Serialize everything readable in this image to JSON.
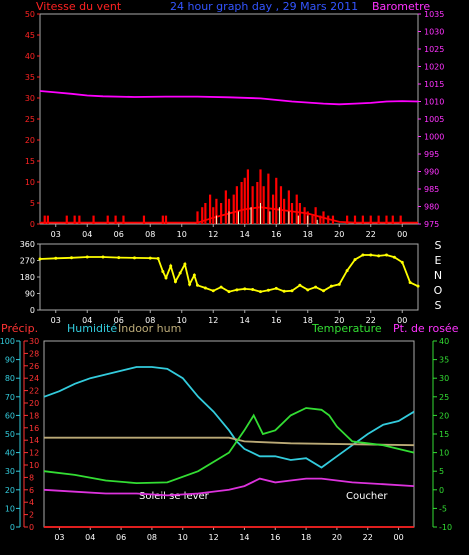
{
  "chart_data": [
    {
      "id": "wind",
      "type": "line",
      "title": "24 hour graph day , 29 Mars 2011",
      "left_axis_label": "Vitesse du vent",
      "right_axis_label": "Barometre",
      "xlabels": [
        "03",
        "04",
        "06",
        "08",
        "10",
        "12",
        "14",
        "16",
        "18",
        "20",
        "22",
        "00"
      ],
      "ylim": [
        0,
        50
      ],
      "yticks": [
        0,
        5,
        10,
        15,
        20,
        25,
        30,
        35,
        40,
        45,
        50
      ],
      "y2lim": [
        975,
        1035
      ],
      "y2ticks": [
        975,
        980,
        985,
        990,
        995,
        1000,
        1005,
        1010,
        1015,
        1020,
        1025,
        1030,
        1035
      ],
      "series": [
        {
          "color": "#ff00ff",
          "axis": "right",
          "x": [
            0,
            1,
            2,
            3,
            4,
            6,
            8,
            10,
            12,
            14,
            16,
            18,
            19,
            20,
            21,
            22,
            23,
            24
          ],
          "values": [
            1013,
            1012.6,
            1012.2,
            1011.7,
            1011.5,
            1011.3,
            1011.4,
            1011.4,
            1011.2,
            1010.9,
            1010,
            1009.4,
            1009.2,
            1009.4,
            1009.6,
            1010,
            1010.1,
            1010
          ]
        },
        {
          "color": "#ff0000",
          "axis": "left",
          "kind": "gust_bars",
          "x": [
            0.3,
            0.5,
            1.7,
            2.2,
            2.5,
            3.4,
            4.3,
            4.8,
            5.3,
            6.6,
            7.8,
            8.0,
            10.0,
            10.3,
            10.5,
            10.8,
            11.0,
            11.2,
            11.5,
            11.8,
            12.0,
            12.3,
            12.5,
            12.8,
            13.0,
            13.2,
            13.5,
            13.8,
            14.0,
            14.2,
            14.5,
            14.8,
            15.0,
            15.3,
            15.5,
            15.8,
            16.0,
            16.3,
            16.5,
            16.8,
            17.0,
            17.3,
            17.5,
            17.8,
            18.0,
            18.3,
            18.6,
            19.5,
            20.0,
            20.5,
            21.0,
            21.5,
            22.0,
            22.4,
            22.9
          ],
          "values": [
            2,
            2,
            2,
            2,
            2,
            2,
            2,
            2,
            2,
            2,
            2,
            2,
            3,
            4,
            5,
            7,
            4,
            6,
            5,
            8,
            6,
            7,
            9,
            10,
            11,
            13,
            9,
            10,
            13,
            9,
            12,
            7,
            11,
            9,
            6,
            8,
            5,
            7,
            5,
            4,
            3,
            2,
            4,
            2,
            3,
            2,
            2,
            2,
            2,
            2,
            2,
            2,
            2,
            2,
            2
          ]
        },
        {
          "color": "#ff0000",
          "axis": "left",
          "kind": "mean_line",
          "x": [
            0,
            10,
            11,
            12,
            13,
            14,
            15,
            16,
            17,
            18,
            19,
            20,
            24
          ],
          "values": [
            0.3,
            0.3,
            1.5,
            2.5,
            3.5,
            4,
            3.5,
            3,
            2.5,
            1.5,
            0.5,
            0.3,
            0.3
          ]
        },
        {
          "color": "#ffffcc",
          "axis": "left",
          "kind": "ticks",
          "x": [
            11.2,
            12.0,
            12.6,
            13.4,
            14.0,
            14.6,
            15.2,
            15.8,
            16.4,
            17.0,
            17.6
          ],
          "values": [
            2,
            3,
            3,
            4,
            5,
            3,
            4,
            3,
            2,
            2,
            1
          ]
        }
      ]
    },
    {
      "id": "direction",
      "type": "scatter",
      "right_label": [
        "S",
        "E",
        "N",
        "O",
        "S"
      ],
      "xlabels": [
        "03",
        "04",
        "06",
        "08",
        "10",
        "12",
        "14",
        "16",
        "18",
        "20",
        "22",
        "00"
      ],
      "ylim": [
        0,
        360
      ],
      "yticks": [
        0,
        90,
        180,
        270,
        360
      ],
      "series": [
        {
          "color": "#ffff00",
          "x": [
            0,
            1,
            2,
            3,
            4,
            5,
            6,
            7,
            7.5,
            7.8,
            8.0,
            8.3,
            8.6,
            8.9,
            9.2,
            9.5,
            9.8,
            10,
            10.5,
            11,
            11.5,
            12,
            12.5,
            13,
            13.5,
            14,
            14.5,
            15,
            15.5,
            16,
            16.5,
            17,
            17.5,
            18,
            18.5,
            19,
            19.5,
            20,
            20.5,
            21,
            21.5,
            22,
            22.5,
            23,
            23.5,
            24
          ],
          "values": [
            278,
            282,
            285,
            289,
            289,
            286,
            284,
            283,
            281,
            210,
            175,
            240,
            155,
            202,
            250,
            140,
            190,
            135,
            120,
            105,
            125,
            100,
            110,
            115,
            112,
            100,
            108,
            118,
            102,
            105,
            135,
            110,
            125,
            105,
            130,
            140,
            215,
            275,
            300,
            300,
            295,
            300,
            288,
            260,
            150,
            130
          ]
        }
      ]
    },
    {
      "id": "weather",
      "type": "line",
      "left_axis_label": "Précip.",
      "legend": [
        {
          "label": "Humidité",
          "color": "#33ccdd"
        },
        {
          "label": "Indoor hum",
          "color": "#bbaa77"
        },
        {
          "label": "Temperature",
          "color": "#33dd33"
        },
        {
          "label": "Pt. de rosée",
          "color": "#dd33dd"
        }
      ],
      "annotations": [
        "Soleil se lever",
        "Coucher"
      ],
      "xlabels": [
        "03",
        "04",
        "06",
        "08",
        "10",
        "12",
        "14",
        "16",
        "18",
        "20",
        "22",
        "00"
      ],
      "hum_axis": {
        "ylim": [
          0,
          100
        ],
        "yticks": [
          0,
          10,
          20,
          30,
          40,
          50,
          60,
          70,
          80,
          90,
          100
        ]
      },
      "precip_axis": {
        "ylim": [
          0,
          30
        ],
        "yticks": [
          0,
          2,
          4,
          6,
          8,
          10,
          12,
          14,
          16,
          18,
          20,
          22,
          24,
          26,
          28,
          30
        ]
      },
      "temp_axis": {
        "ylim": [
          -10,
          40
        ],
        "yticks": [
          -10,
          -5,
          0,
          5,
          10,
          15,
          20,
          25,
          30,
          35,
          40
        ]
      },
      "series": [
        {
          "color": "#33ccdd",
          "axis": "hum",
          "x": [
            0,
            1,
            2,
            3,
            4,
            5,
            6,
            7,
            8,
            9,
            10,
            11,
            12,
            12.5,
            13,
            13.5,
            14,
            15,
            16,
            17,
            18,
            19,
            20,
            21,
            22,
            23,
            24
          ],
          "values": [
            70,
            73,
            77,
            80,
            82,
            84,
            86,
            86,
            85,
            80,
            70,
            62,
            52,
            46,
            42,
            40,
            38,
            38,
            36,
            37,
            32,
            38,
            44,
            50,
            55,
            57,
            62
          ]
        },
        {
          "color": "#bbaa77",
          "axis": "hum",
          "x": [
            0,
            8,
            12,
            13,
            16,
            24
          ],
          "values": [
            48,
            48,
            48,
            46,
            45,
            44
          ]
        },
        {
          "color": "#33dd33",
          "axis": "temp",
          "x": [
            0,
            2,
            4,
            6,
            8,
            10,
            12,
            13,
            13.6,
            14.2,
            15,
            16,
            17,
            18,
            18.5,
            19,
            20,
            22,
            24
          ],
          "values": [
            5,
            4,
            2.5,
            1.8,
            2,
            5,
            10,
            16,
            20,
            15,
            16,
            20,
            22,
            21.5,
            20,
            17,
            13,
            12,
            10
          ]
        },
        {
          "color": "#dd33dd",
          "axis": "temp",
          "x": [
            0,
            2,
            4,
            6,
            8,
            10,
            12,
            13,
            14,
            15,
            16,
            17,
            18,
            19,
            20,
            22,
            24
          ],
          "values": [
            0,
            -0.5,
            -1,
            -1,
            -1.5,
            -1,
            0,
            1,
            3,
            2,
            2.5,
            3,
            3,
            2.5,
            2,
            1.5,
            1
          ]
        },
        {
          "color": "#ff2222",
          "axis": "precip",
          "x": [
            0,
            24
          ],
          "values": [
            0,
            0
          ]
        }
      ]
    }
  ]
}
